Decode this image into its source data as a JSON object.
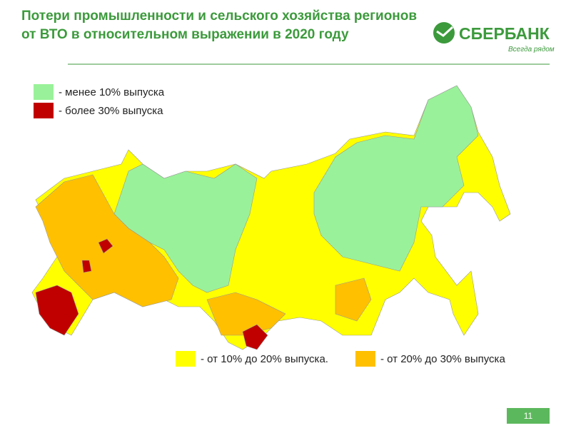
{
  "header": {
    "title_lines": [
      "Потери промышленности и сельского хозяйства регионов",
      "от ВТО в относительном выражении в 2020 году"
    ]
  },
  "logo": {
    "name": "СБЕРБАНК",
    "slogan": "Всегда рядом"
  },
  "legend": {
    "items": [
      {
        "label": "- менее 10% выпуска",
        "color": "#99f299"
      },
      {
        "label": "- более 30% выпуска",
        "color": "#c00000"
      },
      {
        "label": "- от 10% до 20% выпуска.",
        "color": "#ffff00"
      },
      {
        "label": "- от 20% до 30% выпуска",
        "color": "#ffc000"
      }
    ]
  },
  "page_number": "11"
}
